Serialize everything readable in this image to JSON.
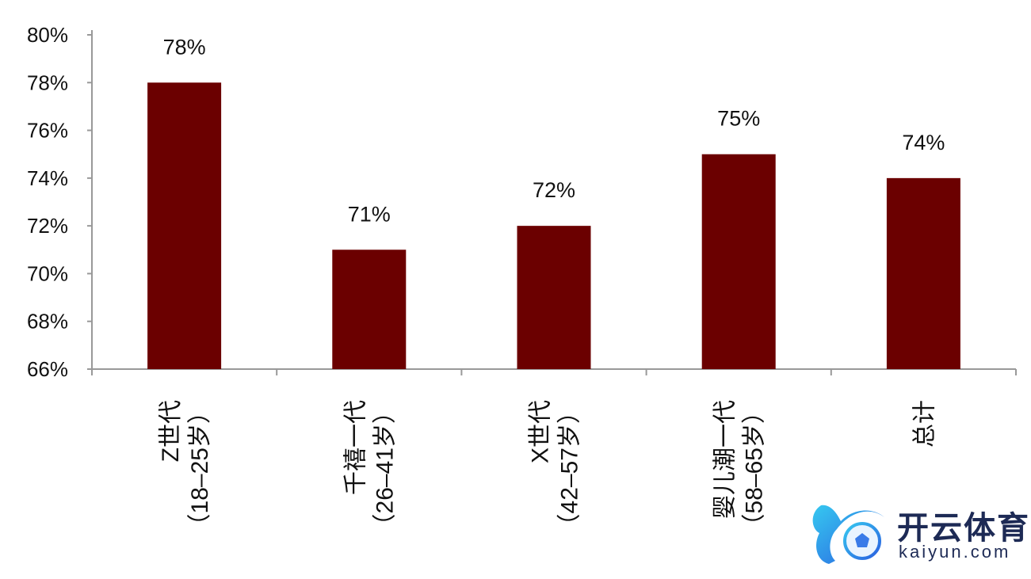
{
  "chart_data": {
    "type": "bar",
    "categories": [
      [
        "Z世代",
        "（18–25岁）"
      ],
      [
        "千禧一代",
        "（26–41岁）"
      ],
      [
        "X世代",
        "（42–57岁）"
      ],
      [
        "婴儿潮一代",
        "（58–65岁）"
      ],
      [
        "总计"
      ]
    ],
    "values": [
      78,
      71,
      72,
      75,
      74
    ],
    "data_labels": [
      "78%",
      "71%",
      "72%",
      "75%",
      "74%"
    ],
    "ylim": [
      66,
      80
    ],
    "yticks": [
      "66%",
      "68%",
      "70%",
      "72%",
      "74%",
      "76%",
      "78%",
      "80%"
    ],
    "title": "",
    "xlabel": "",
    "ylabel": "",
    "grid": false,
    "bar_color": "#6b0000"
  },
  "watermark": {
    "name": "开云体育",
    "domain": "kaiyun.com"
  }
}
